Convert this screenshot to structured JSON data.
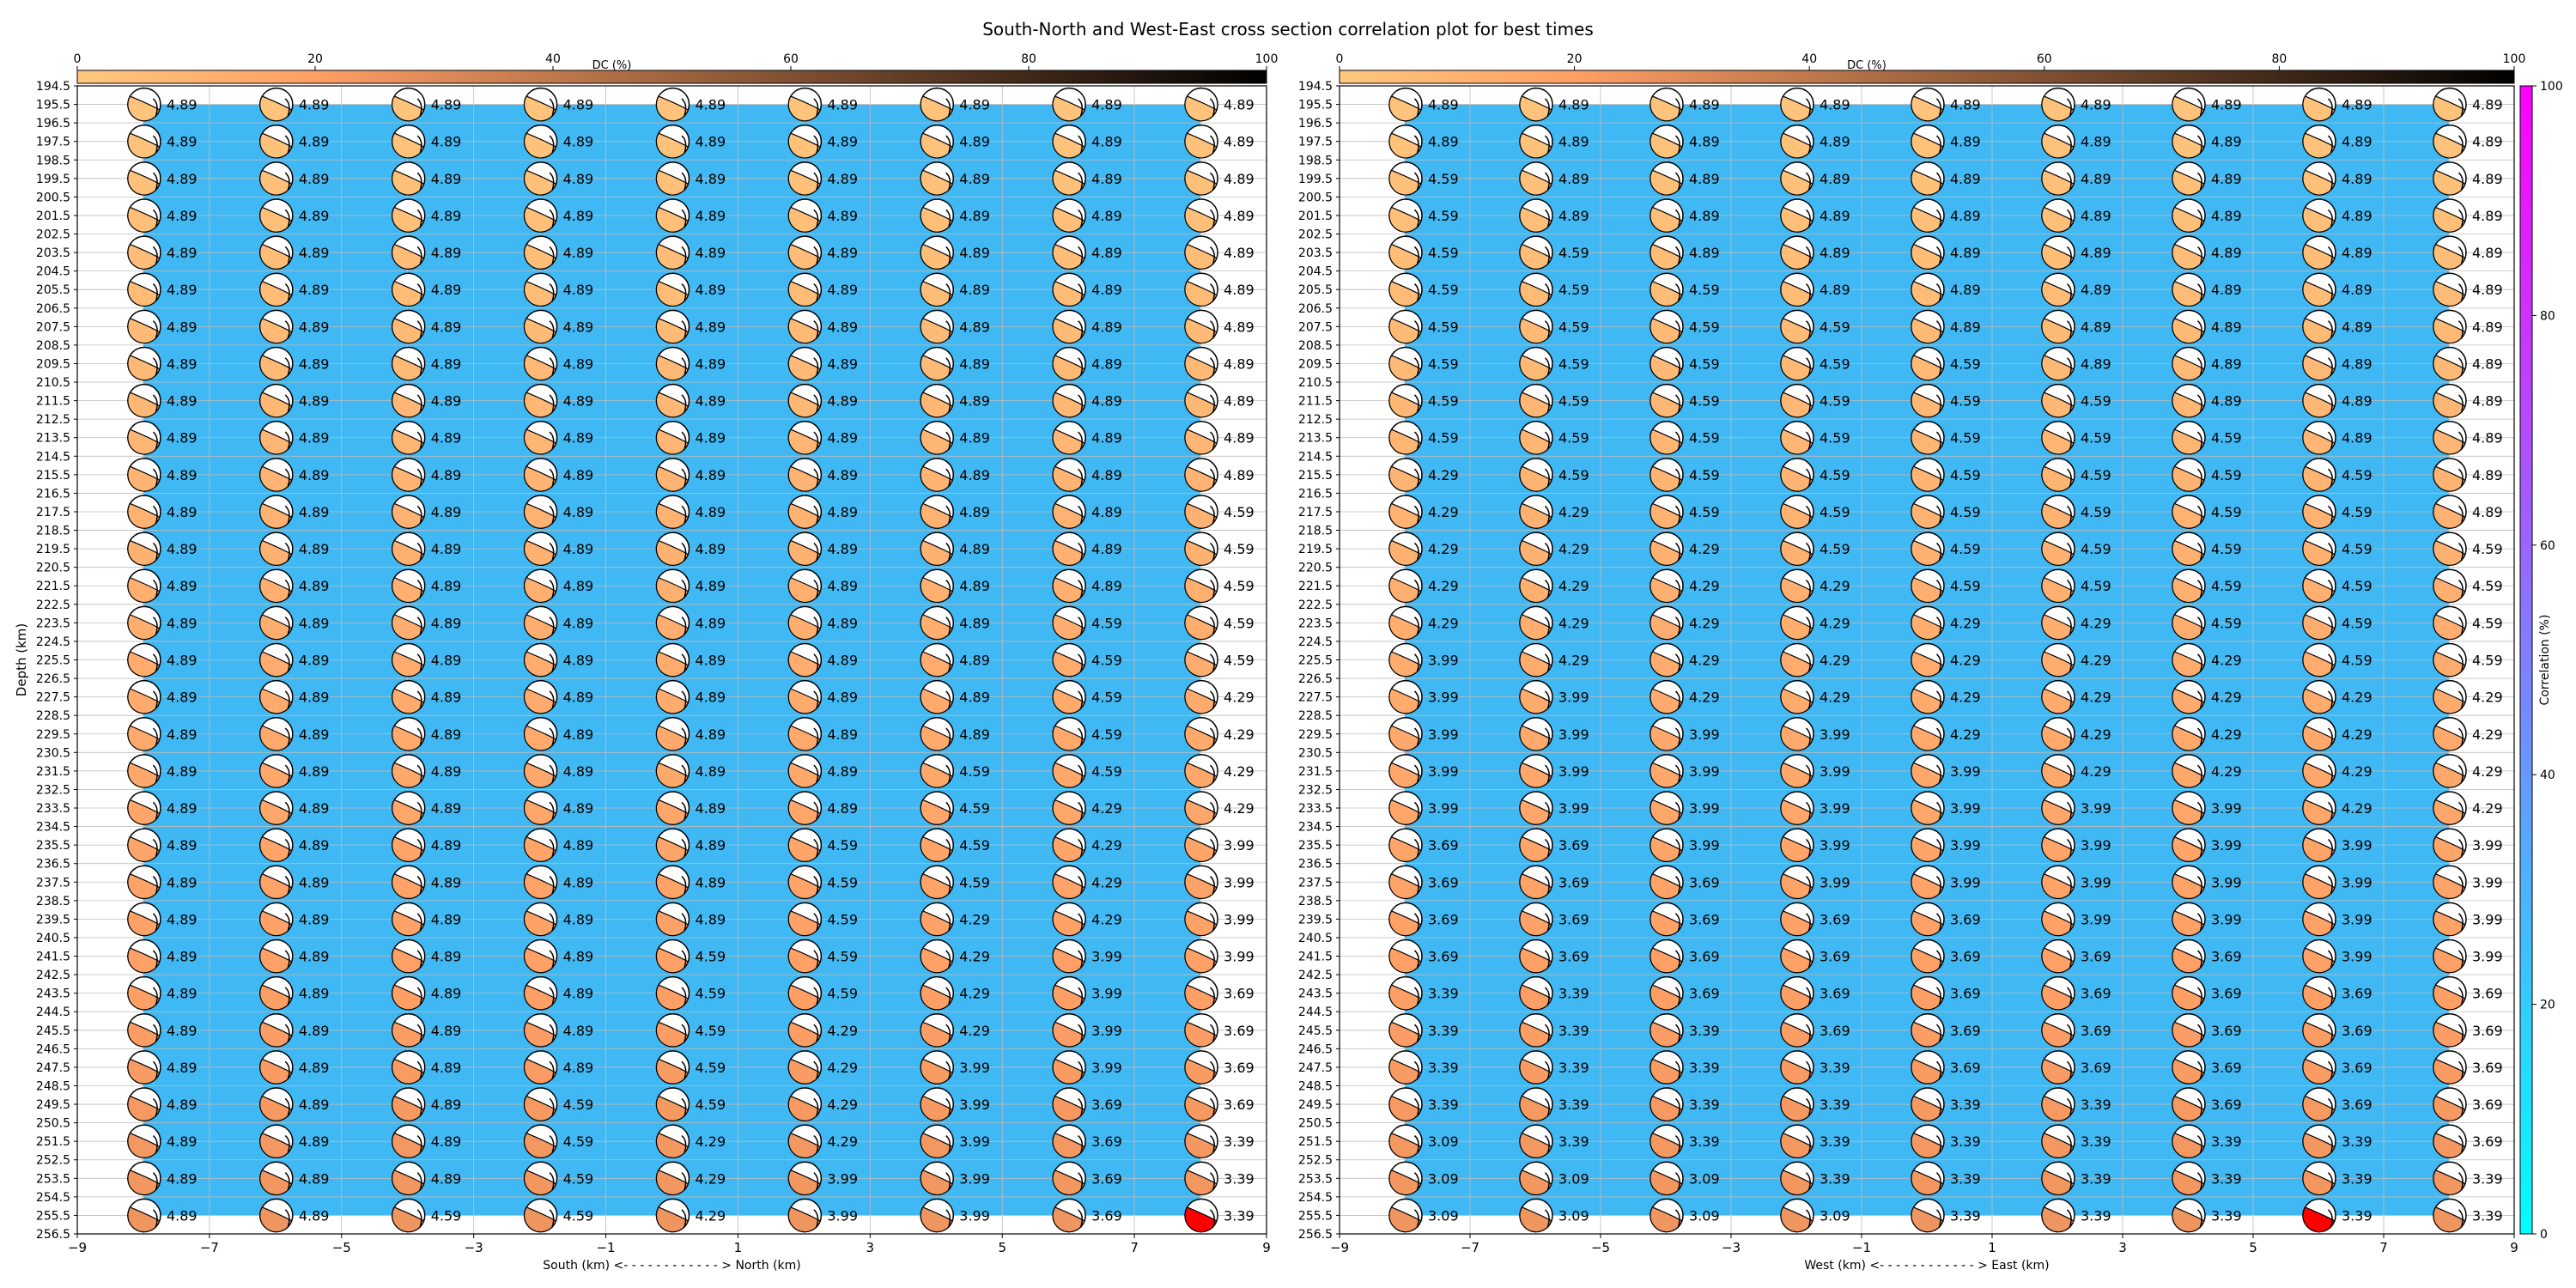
{
  "title": "South-North and West-East cross section correlation plot for best times",
  "colors": {
    "panel_fill": "#40b8f4",
    "grid": "#bdbdbd",
    "best_beachball": "#ff0000"
  },
  "dc_colorbar": {
    "label": "DC (%)",
    "range": [
      0,
      100
    ],
    "ticks": [
      0,
      20,
      40,
      60,
      80,
      100
    ],
    "colormap": "copper"
  },
  "corr_colorbar": {
    "label": "Correlation (%)",
    "range": [
      0,
      100
    ],
    "ticks": [
      0,
      20,
      40,
      60,
      80,
      100
    ],
    "colormap": "cool"
  },
  "depth_axis": {
    "label": "Depth (km)",
    "ticks": [
      "194.5",
      "195.5",
      "196.5",
      "197.5",
      "198.5",
      "199.5",
      "200.5",
      "201.5",
      "202.5",
      "203.5",
      "204.5",
      "205.5",
      "206.5",
      "207.5",
      "208.5",
      "209.5",
      "210.5",
      "211.5",
      "212.5",
      "213.5",
      "214.5",
      "215.5",
      "216.5",
      "217.5",
      "218.5",
      "219.5",
      "220.5",
      "221.5",
      "222.5",
      "223.5",
      "224.5",
      "225.5",
      "226.5",
      "227.5",
      "228.5",
      "229.5",
      "230.5",
      "231.5",
      "232.5",
      "233.5",
      "234.5",
      "235.5",
      "236.5",
      "237.5",
      "238.5",
      "239.5",
      "240.5",
      "241.5",
      "242.5",
      "243.5",
      "244.5",
      "245.5",
      "246.5",
      "247.5",
      "248.5",
      "249.5",
      "250.5",
      "251.5",
      "252.5",
      "253.5",
      "254.5",
      "255.5",
      "256.5"
    ],
    "range": [
      194.5,
      256.5
    ]
  },
  "chart_data": [
    {
      "type": "scatter",
      "title": "",
      "xlabel": "South (km) <- - - - - - - - - - - - > North (km)",
      "ylabel": "Depth (km)",
      "xlim": [
        -9,
        9
      ],
      "ylim": [
        256.5,
        194.5
      ],
      "xticks": [
        "−9",
        "−7",
        "−5",
        "−3",
        "−1",
        "1",
        "3",
        "5",
        "7",
        "9"
      ],
      "x": [
        -8,
        -6,
        -4,
        -2,
        0,
        2,
        4,
        6,
        8
      ],
      "depths": [
        195.5,
        197.5,
        199.5,
        201.5,
        203.5,
        205.5,
        207.5,
        209.5,
        211.5,
        213.5,
        215.5,
        217.5,
        219.5,
        221.5,
        223.5,
        225.5,
        227.5,
        229.5,
        231.5,
        233.5,
        235.5,
        237.5,
        239.5,
        241.5,
        243.5,
        245.5,
        247.5,
        249.5,
        251.5,
        253.5,
        255.5
      ],
      "values": [
        [
          "4.89",
          "4.89",
          "4.89",
          "4.89",
          "4.89",
          "4.89",
          "4.89",
          "4.89",
          "4.89"
        ],
        [
          "4.89",
          "4.89",
          "4.89",
          "4.89",
          "4.89",
          "4.89",
          "4.89",
          "4.89",
          "4.89"
        ],
        [
          "4.89",
          "4.89",
          "4.89",
          "4.89",
          "4.89",
          "4.89",
          "4.89",
          "4.89",
          "4.89"
        ],
        [
          "4.89",
          "4.89",
          "4.89",
          "4.89",
          "4.89",
          "4.89",
          "4.89",
          "4.89",
          "4.89"
        ],
        [
          "4.89",
          "4.89",
          "4.89",
          "4.89",
          "4.89",
          "4.89",
          "4.89",
          "4.89",
          "4.89"
        ],
        [
          "4.89",
          "4.89",
          "4.89",
          "4.89",
          "4.89",
          "4.89",
          "4.89",
          "4.89",
          "4.89"
        ],
        [
          "4.89",
          "4.89",
          "4.89",
          "4.89",
          "4.89",
          "4.89",
          "4.89",
          "4.89",
          "4.89"
        ],
        [
          "4.89",
          "4.89",
          "4.89",
          "4.89",
          "4.89",
          "4.89",
          "4.89",
          "4.89",
          "4.89"
        ],
        [
          "4.89",
          "4.89",
          "4.89",
          "4.89",
          "4.89",
          "4.89",
          "4.89",
          "4.89",
          "4.89"
        ],
        [
          "4.89",
          "4.89",
          "4.89",
          "4.89",
          "4.89",
          "4.89",
          "4.89",
          "4.89",
          "4.89"
        ],
        [
          "4.89",
          "4.89",
          "4.89",
          "4.89",
          "4.89",
          "4.89",
          "4.89",
          "4.89",
          "4.89"
        ],
        [
          "4.89",
          "4.89",
          "4.89",
          "4.89",
          "4.89",
          "4.89",
          "4.89",
          "4.89",
          "4.59"
        ],
        [
          "4.89",
          "4.89",
          "4.89",
          "4.89",
          "4.89",
          "4.89",
          "4.89",
          "4.89",
          "4.59"
        ],
        [
          "4.89",
          "4.89",
          "4.89",
          "4.89",
          "4.89",
          "4.89",
          "4.89",
          "4.89",
          "4.59"
        ],
        [
          "4.89",
          "4.89",
          "4.89",
          "4.89",
          "4.89",
          "4.89",
          "4.89",
          "4.59",
          "4.59"
        ],
        [
          "4.89",
          "4.89",
          "4.89",
          "4.89",
          "4.89",
          "4.89",
          "4.89",
          "4.59",
          "4.59"
        ],
        [
          "4.89",
          "4.89",
          "4.89",
          "4.89",
          "4.89",
          "4.89",
          "4.89",
          "4.59",
          "4.29"
        ],
        [
          "4.89",
          "4.89",
          "4.89",
          "4.89",
          "4.89",
          "4.89",
          "4.89",
          "4.59",
          "4.29"
        ],
        [
          "4.89",
          "4.89",
          "4.89",
          "4.89",
          "4.89",
          "4.89",
          "4.59",
          "4.59",
          "4.29"
        ],
        [
          "4.89",
          "4.89",
          "4.89",
          "4.89",
          "4.89",
          "4.89",
          "4.59",
          "4.29",
          "4.29"
        ],
        [
          "4.89",
          "4.89",
          "4.89",
          "4.89",
          "4.89",
          "4.59",
          "4.59",
          "4.29",
          "3.99"
        ],
        [
          "4.89",
          "4.89",
          "4.89",
          "4.89",
          "4.89",
          "4.59",
          "4.59",
          "4.29",
          "3.99"
        ],
        [
          "4.89",
          "4.89",
          "4.89",
          "4.89",
          "4.89",
          "4.59",
          "4.29",
          "4.29",
          "3.99"
        ],
        [
          "4.89",
          "4.89",
          "4.89",
          "4.89",
          "4.59",
          "4.59",
          "4.29",
          "3.99",
          "3.99"
        ],
        [
          "4.89",
          "4.89",
          "4.89",
          "4.89",
          "4.59",
          "4.59",
          "4.29",
          "3.99",
          "3.69"
        ],
        [
          "4.89",
          "4.89",
          "4.89",
          "4.89",
          "4.59",
          "4.29",
          "4.29",
          "3.99",
          "3.69"
        ],
        [
          "4.89",
          "4.89",
          "4.89",
          "4.89",
          "4.59",
          "4.29",
          "3.99",
          "3.99",
          "3.69"
        ],
        [
          "4.89",
          "4.89",
          "4.89",
          "4.59",
          "4.59",
          "4.29",
          "3.99",
          "3.69",
          "3.69"
        ],
        [
          "4.89",
          "4.89",
          "4.89",
          "4.59",
          "4.29",
          "4.29",
          "3.99",
          "3.69",
          "3.39"
        ],
        [
          "4.89",
          "4.89",
          "4.89",
          "4.59",
          "4.29",
          "3.99",
          "3.99",
          "3.69",
          "3.39"
        ],
        [
          "4.89",
          "4.89",
          "4.59",
          "4.59",
          "4.29",
          "3.99",
          "3.99",
          "3.69",
          "3.39"
        ]
      ],
      "best": {
        "row": 30,
        "col": 8
      }
    },
    {
      "type": "scatter",
      "title": "",
      "xlabel": "West (km) <- - - - - - - - - - - - > East (km)",
      "ylabel": "Depth (km)",
      "xlim": [
        -9,
        9
      ],
      "ylim": [
        256.5,
        194.5
      ],
      "xticks": [
        "−9",
        "−7",
        "−5",
        "−3",
        "−1",
        "1",
        "3",
        "5",
        "7",
        "9"
      ],
      "x": [
        -8,
        -6,
        -4,
        -2,
        0,
        2,
        4,
        6,
        8
      ],
      "depths": [
        195.5,
        197.5,
        199.5,
        201.5,
        203.5,
        205.5,
        207.5,
        209.5,
        211.5,
        213.5,
        215.5,
        217.5,
        219.5,
        221.5,
        223.5,
        225.5,
        227.5,
        229.5,
        231.5,
        233.5,
        235.5,
        237.5,
        239.5,
        241.5,
        243.5,
        245.5,
        247.5,
        249.5,
        251.5,
        253.5,
        255.5
      ],
      "values": [
        [
          "4.89",
          "4.89",
          "4.89",
          "4.89",
          "4.89",
          "4.89",
          "4.89",
          "4.89",
          "4.89"
        ],
        [
          "4.89",
          "4.89",
          "4.89",
          "4.89",
          "4.89",
          "4.89",
          "4.89",
          "4.89",
          "4.89"
        ],
        [
          "4.59",
          "4.89",
          "4.89",
          "4.89",
          "4.89",
          "4.89",
          "4.89",
          "4.89",
          "4.89"
        ],
        [
          "4.59",
          "4.89",
          "4.89",
          "4.89",
          "4.89",
          "4.89",
          "4.89",
          "4.89",
          "4.89"
        ],
        [
          "4.59",
          "4.59",
          "4.89",
          "4.89",
          "4.89",
          "4.89",
          "4.89",
          "4.89",
          "4.89"
        ],
        [
          "4.59",
          "4.59",
          "4.59",
          "4.89",
          "4.89",
          "4.89",
          "4.89",
          "4.89",
          "4.89"
        ],
        [
          "4.59",
          "4.59",
          "4.59",
          "4.59",
          "4.89",
          "4.89",
          "4.89",
          "4.89",
          "4.89"
        ],
        [
          "4.59",
          "4.59",
          "4.59",
          "4.59",
          "4.59",
          "4.89",
          "4.89",
          "4.89",
          "4.89"
        ],
        [
          "4.59",
          "4.59",
          "4.59",
          "4.59",
          "4.59",
          "4.59",
          "4.89",
          "4.89",
          "4.89"
        ],
        [
          "4.59",
          "4.59",
          "4.59",
          "4.59",
          "4.59",
          "4.59",
          "4.59",
          "4.89",
          "4.89"
        ],
        [
          "4.29",
          "4.59",
          "4.59",
          "4.59",
          "4.59",
          "4.59",
          "4.59",
          "4.59",
          "4.89"
        ],
        [
          "4.29",
          "4.29",
          "4.59",
          "4.59",
          "4.59",
          "4.59",
          "4.59",
          "4.59",
          "4.89"
        ],
        [
          "4.29",
          "4.29",
          "4.29",
          "4.59",
          "4.59",
          "4.59",
          "4.59",
          "4.59",
          "4.59"
        ],
        [
          "4.29",
          "4.29",
          "4.29",
          "4.29",
          "4.59",
          "4.59",
          "4.59",
          "4.59",
          "4.59"
        ],
        [
          "4.29",
          "4.29",
          "4.29",
          "4.29",
          "4.29",
          "4.29",
          "4.59",
          "4.59",
          "4.59"
        ],
        [
          "3.99",
          "4.29",
          "4.29",
          "4.29",
          "4.29",
          "4.29",
          "4.29",
          "4.59",
          "4.59"
        ],
        [
          "3.99",
          "3.99",
          "4.29",
          "4.29",
          "4.29",
          "4.29",
          "4.29",
          "4.29",
          "4.29"
        ],
        [
          "3.99",
          "3.99",
          "3.99",
          "3.99",
          "4.29",
          "4.29",
          "4.29",
          "4.29",
          "4.29"
        ],
        [
          "3.99",
          "3.99",
          "3.99",
          "3.99",
          "3.99",
          "4.29",
          "4.29",
          "4.29",
          "4.29"
        ],
        [
          "3.99",
          "3.99",
          "3.99",
          "3.99",
          "3.99",
          "3.99",
          "3.99",
          "4.29",
          "4.29"
        ],
        [
          "3.69",
          "3.69",
          "3.99",
          "3.99",
          "3.99",
          "3.99",
          "3.99",
          "3.99",
          "3.99"
        ],
        [
          "3.69",
          "3.69",
          "3.69",
          "3.99",
          "3.99",
          "3.99",
          "3.99",
          "3.99",
          "3.99"
        ],
        [
          "3.69",
          "3.69",
          "3.69",
          "3.69",
          "3.69",
          "3.99",
          "3.99",
          "3.99",
          "3.99"
        ],
        [
          "3.69",
          "3.69",
          "3.69",
          "3.69",
          "3.69",
          "3.69",
          "3.69",
          "3.99",
          "3.99"
        ],
        [
          "3.39",
          "3.39",
          "3.69",
          "3.69",
          "3.69",
          "3.69",
          "3.69",
          "3.69",
          "3.69"
        ],
        [
          "3.39",
          "3.39",
          "3.39",
          "3.69",
          "3.69",
          "3.69",
          "3.69",
          "3.69",
          "3.69"
        ],
        [
          "3.39",
          "3.39",
          "3.39",
          "3.39",
          "3.69",
          "3.69",
          "3.69",
          "3.69",
          "3.69"
        ],
        [
          "3.39",
          "3.39",
          "3.39",
          "3.39",
          "3.39",
          "3.39",
          "3.69",
          "3.69",
          "3.69"
        ],
        [
          "3.09",
          "3.39",
          "3.39",
          "3.39",
          "3.39",
          "3.39",
          "3.39",
          "3.39",
          "3.69"
        ],
        [
          "3.09",
          "3.09",
          "3.09",
          "3.39",
          "3.39",
          "3.39",
          "3.39",
          "3.39",
          "3.39"
        ],
        [
          "3.09",
          "3.09",
          "3.09",
          "3.09",
          "3.39",
          "3.39",
          "3.39",
          "3.39",
          "3.39"
        ]
      ],
      "best": {
        "row": 30,
        "col": 7
      }
    }
  ]
}
